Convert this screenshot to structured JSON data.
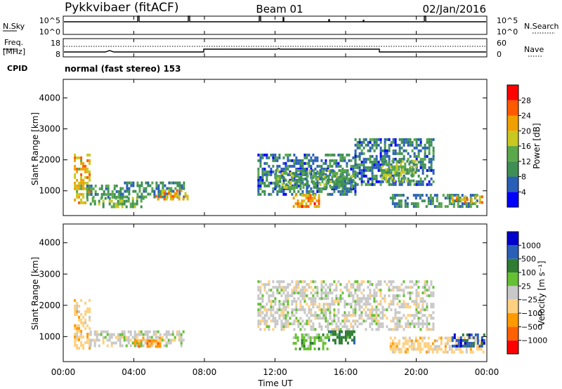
{
  "header": {
    "station": "Pykkvibaer (fitACF)",
    "beam": "Beam 01",
    "date": "02/Jan/2016"
  },
  "sky_panel": {
    "left_label": "N.Sky",
    "right_label": "N.Search",
    "left_ticks": [
      "10^5",
      "10^0"
    ],
    "right_ticks": [
      "10^5",
      "10^0"
    ]
  },
  "freq_panel": {
    "left_label_line1": "Freq.",
    "left_label_line2": "[MHz]",
    "right_label": "Nave",
    "left_ticks": [
      "18",
      "8"
    ],
    "right_ticks": [
      "60",
      "0"
    ]
  },
  "cpid": {
    "label": "CPID",
    "text": "normal (fast stereo) 153"
  },
  "colors": {
    "power_scale": [
      "#0000ff",
      "#2a5fb8",
      "#3f8f55",
      "#5aa84a",
      "#c8c820",
      "#f0a000",
      "#ff5a00",
      "#ff0000"
    ],
    "velocity_scale": [
      "#ff0000",
      "#ff6000",
      "#ff9a00",
      "#ffd080",
      "#c8c8c8",
      "#66c033",
      "#2e7d32",
      "#2a5fb8",
      "#0000cc"
    ]
  },
  "chart_data": [
    {
      "type": "heatmap",
      "name": "power",
      "ylabel": "Slant Range [km]",
      "yticks": [
        "1000",
        "2000",
        "3000",
        "4000"
      ],
      "ylim": [
        200,
        4600
      ],
      "xlim": [
        0,
        24
      ],
      "colorbar": {
        "label": "Power [dB]",
        "ticks": [
          "4",
          "8",
          "12",
          "16",
          "20",
          "24",
          "28"
        ],
        "range": [
          0,
          32
        ]
      },
      "regions": [
        {
          "t0": 0.6,
          "t1": 1.5,
          "r0": 600,
          "r1": 2200,
          "level": 20
        },
        {
          "t0": 1.3,
          "t1": 3.2,
          "r0": 800,
          "r1": 1200,
          "level": 10
        },
        {
          "t0": 1.5,
          "t1": 4.5,
          "r0": 500,
          "r1": 800,
          "level": 14
        },
        {
          "t0": 3.2,
          "t1": 6.8,
          "r0": 800,
          "r1": 1300,
          "level": 9
        },
        {
          "t0": 5.2,
          "t1": 7.0,
          "r0": 750,
          "r1": 1050,
          "level": 21
        },
        {
          "t0": 11.0,
          "t1": 16.5,
          "r0": 900,
          "r1": 2200,
          "level": 8
        },
        {
          "t0": 13.0,
          "t1": 14.5,
          "r0": 500,
          "r1": 900,
          "level": 24
        },
        {
          "t0": 12.0,
          "t1": 16.5,
          "r0": 1100,
          "r1": 1700,
          "level": 12
        },
        {
          "t0": 16.5,
          "t1": 21.0,
          "r0": 1200,
          "r1": 2700,
          "level": 8
        },
        {
          "t0": 18.0,
          "t1": 20.0,
          "r0": 1300,
          "r1": 2000,
          "level": 15
        },
        {
          "t0": 18.5,
          "t1": 23.5,
          "r0": 500,
          "r1": 900,
          "level": 10
        },
        {
          "t0": 22.0,
          "t1": 23.7,
          "r0": 650,
          "r1": 850,
          "level": 22
        }
      ]
    },
    {
      "type": "heatmap",
      "name": "velocity",
      "ylabel": "Slant Range [km]",
      "yticks": [
        "1000",
        "2000",
        "3000",
        "4000"
      ],
      "ylim": [
        200,
        4600
      ],
      "xlim": [
        0,
        24
      ],
      "xlabel": "Time UT",
      "xticks": [
        "00:00",
        "04:00",
        "08:00",
        "12:00",
        "16:00",
        "20:00",
        "00:00"
      ],
      "colorbar": {
        "label": "Velocity [m s⁻¹]",
        "ticks": [
          "1000",
          "500",
          "100",
          "25",
          "−25",
          "−100",
          "−500",
          "−1000"
        ]
      },
      "regions": [
        {
          "t0": 0.6,
          "t1": 1.5,
          "r0": 600,
          "r1": 2200,
          "level": 3
        },
        {
          "t0": 1.5,
          "t1": 6.8,
          "r0": 700,
          "r1": 1200,
          "level": 4
        },
        {
          "t0": 4.0,
          "t1": 5.5,
          "r0": 700,
          "r1": 1000,
          "level": 2
        },
        {
          "t0": 11.0,
          "t1": 21.0,
          "r0": 1200,
          "r1": 2800,
          "level": 4
        },
        {
          "t0": 13.0,
          "t1": 15.0,
          "r0": 600,
          "r1": 1100,
          "level": 5
        },
        {
          "t0": 15.0,
          "t1": 16.5,
          "r0": 800,
          "r1": 1200,
          "level": 6
        },
        {
          "t0": 18.5,
          "t1": 23.8,
          "r0": 500,
          "r1": 1000,
          "level": 3
        },
        {
          "t0": 22.0,
          "t1": 23.9,
          "r0": 700,
          "r1": 1100,
          "level": 7
        }
      ]
    }
  ]
}
